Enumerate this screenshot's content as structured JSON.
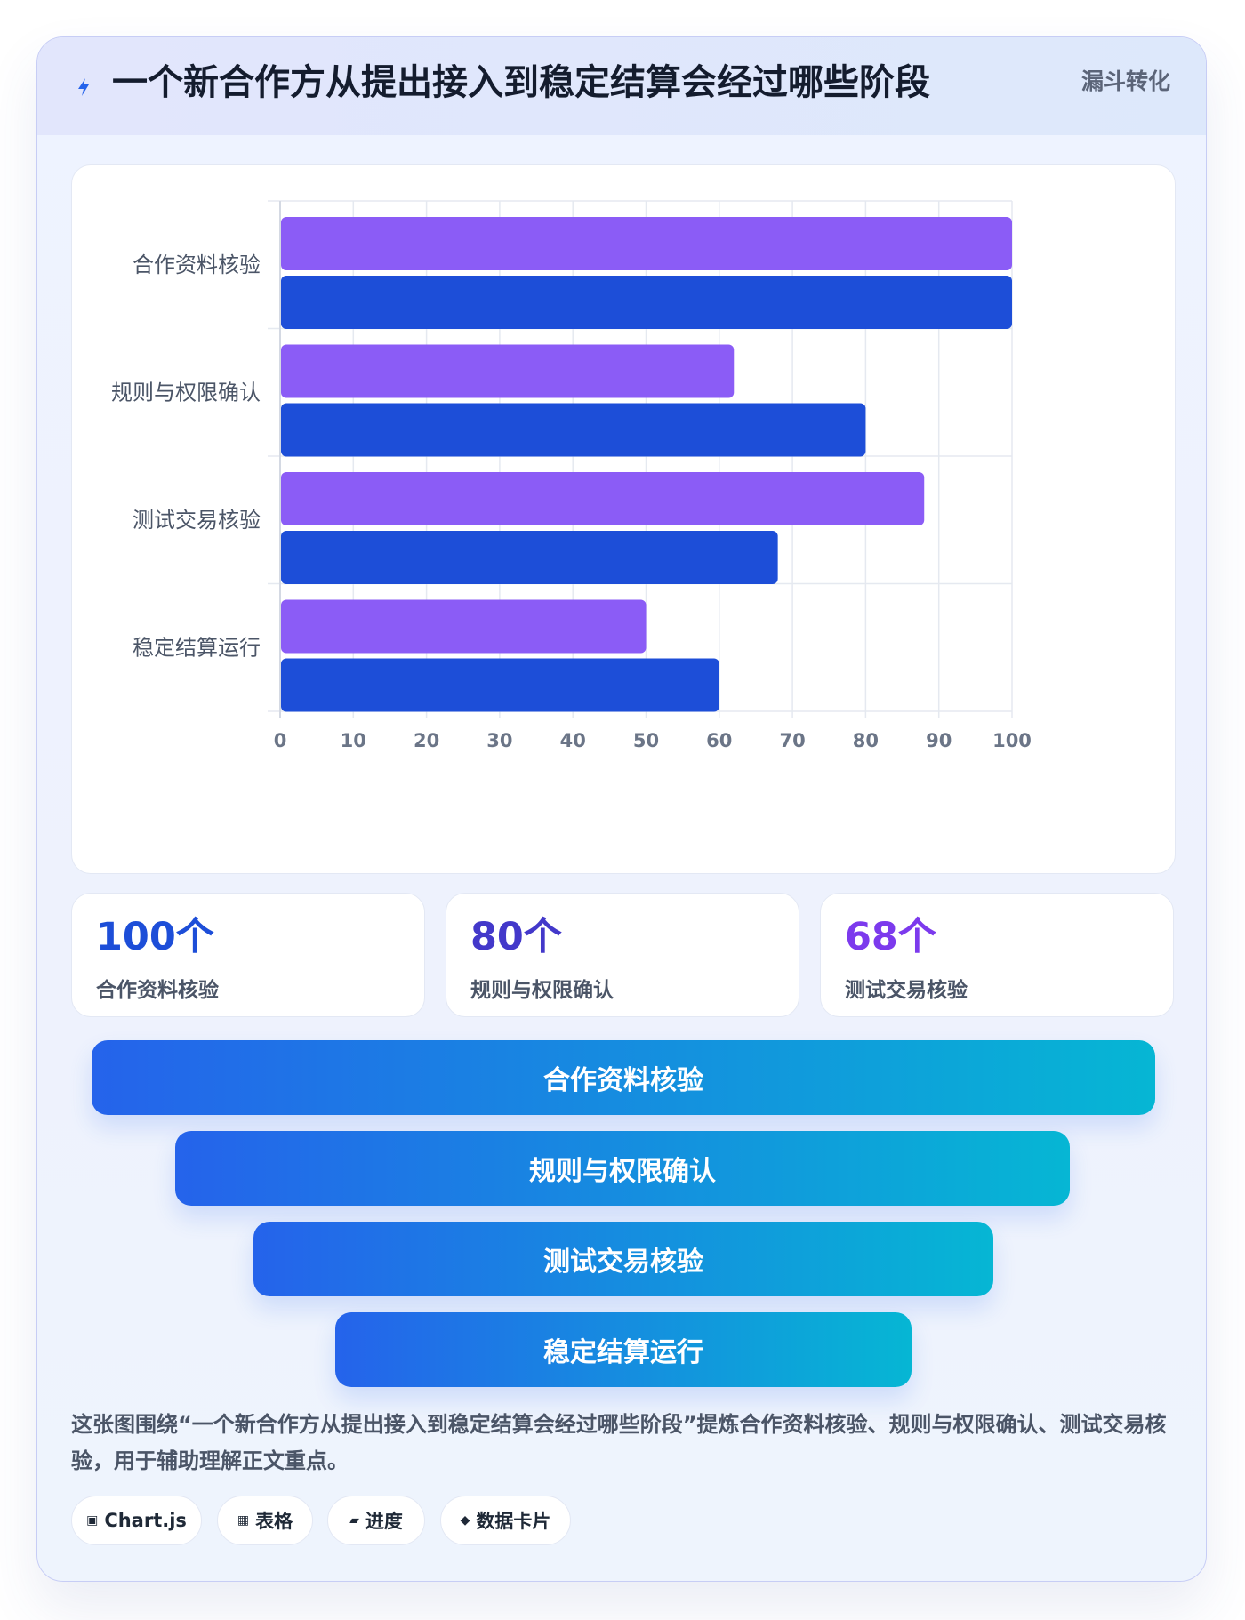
{
  "header": {
    "title": "一个新合作方从提出接入到稳定结算会经过哪些阶段",
    "tag": "漏斗转化",
    "icon": "lightning-icon"
  },
  "colors": {
    "series_a": "#8b5cf6",
    "series_b": "#1d4ed8",
    "funnel_start": "#2563eb",
    "funnel_end": "#06b6d4"
  },
  "chart_data": {
    "type": "bar",
    "orientation": "horizontal",
    "categories": [
      "合作资料核验",
      "规则与权限确认",
      "测试交易核验",
      "稳定结算运行"
    ],
    "series": [
      {
        "values": [
          100,
          62,
          88,
          50
        ],
        "color": "#8b5cf6"
      },
      {
        "values": [
          100,
          80,
          68,
          60
        ],
        "color": "#1d4ed8"
      }
    ],
    "xlim": [
      0,
      100
    ],
    "xticks": [
      0,
      10,
      20,
      30,
      40,
      50,
      60,
      70,
      80,
      90,
      100
    ],
    "grid": true,
    "legend": "none"
  },
  "stats": [
    {
      "value": "100个",
      "label": "合作资料核验",
      "color": "#1d4ed8"
    },
    {
      "value": "80个",
      "label": "规则与权限确认",
      "color": "#4338ca"
    },
    {
      "value": "68个",
      "label": "测试交易核验",
      "color": "#7c3aed"
    }
  ],
  "funnel": [
    {
      "label": "合作资料核验"
    },
    {
      "label": "规则与权限确认"
    },
    {
      "label": "测试交易核验"
    },
    {
      "label": "稳定结算运行"
    }
  ],
  "description": "这张图围绕“一个新合作方从提出接入到稳定结算会经过哪些阶段”提炼合作资料核验、规则与权限确认、测试交易核验，用于辅助理解正文重点。",
  "chips": [
    {
      "icon": "▣",
      "icon_name": "square-icon",
      "label": "Chart.js"
    },
    {
      "icon": "▦",
      "icon_name": "grid-icon",
      "label": "表格"
    },
    {
      "icon": "▰",
      "icon_name": "bar-icon",
      "label": "进度"
    },
    {
      "icon": "◆",
      "icon_name": "diamond-icon",
      "label": "数据卡片"
    }
  ]
}
